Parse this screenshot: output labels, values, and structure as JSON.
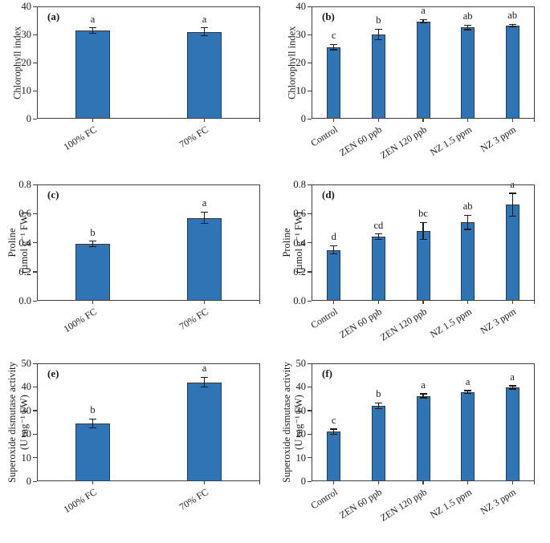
{
  "colors": {
    "bar_fill": "#2f74b5",
    "bar_edge": "#1f3c61",
    "axis": "#3f3f3f",
    "error_bar": "#1a1a1a",
    "text": "#1a1a1a",
    "background": "#ffffff"
  },
  "chart_data": [
    {
      "type": "bar",
      "panel_label": "(a)",
      "ylabel_lines": [
        "Chlorophyll index"
      ],
      "ylim": [
        0,
        40
      ],
      "ytick_labels": [
        "0",
        "10",
        "20",
        "30",
        "40"
      ],
      "categories": [
        "100% FC",
        "70% FC"
      ],
      "values": [
        31.4,
        31.0
      ],
      "errors": [
        1.0,
        1.4
      ],
      "sig_letters": [
        "a",
        "a"
      ],
      "grid": false,
      "legend": "none"
    },
    {
      "type": "bar",
      "panel_label": "(b)",
      "ylabel_lines": [
        "Chlorophyll index"
      ],
      "ylim": [
        0,
        40
      ],
      "ytick_labels": [
        "0",
        "10",
        "20",
        "30",
        "40"
      ],
      "categories": [
        "Control",
        "ZEN 60 ppb",
        "ZEN 120 ppb",
        "NZ 1.5 ppm",
        "NZ 3 ppm"
      ],
      "values": [
        25.5,
        30.0,
        34.7,
        32.5,
        33.2
      ],
      "errors": [
        1.0,
        2.0,
        0.7,
        0.8,
        0.5
      ],
      "sig_letters": [
        "c",
        "b",
        "a",
        "ab",
        "ab"
      ],
      "grid": false,
      "legend": "none"
    },
    {
      "type": "bar",
      "panel_label": "(c)",
      "ylabel_lines": [
        "Proline",
        "(µmol g⁻¹ FW)"
      ],
      "ylim": [
        0,
        0.8
      ],
      "ytick_labels": [
        "0.0",
        "0.2",
        "0.4",
        "0.6",
        "0.8"
      ],
      "categories": [
        "100% FC",
        "70% FC"
      ],
      "values": [
        0.39,
        0.57
      ],
      "errors": [
        0.02,
        0.04
      ],
      "sig_letters": [
        "b",
        "a"
      ],
      "grid": false,
      "legend": "none"
    },
    {
      "type": "bar",
      "panel_label": "(d)",
      "ylabel_lines": [
        "Proline",
        "(µmol g⁻¹ FW)"
      ],
      "ylim": [
        0,
        0.8
      ],
      "ytick_labels": [
        "0.0",
        "0.2",
        "0.4",
        "0.6",
        "0.8"
      ],
      "categories": [
        "Control",
        "ZEN 60 ppb",
        "ZEN 120 ppb",
        "NZ 1.5 ppm",
        "NZ 3 ppm"
      ],
      "values": [
        0.35,
        0.44,
        0.48,
        0.54,
        0.66
      ],
      "errors": [
        0.03,
        0.02,
        0.06,
        0.05,
        0.08
      ],
      "sig_letters": [
        "d",
        "cd",
        "bc",
        "ab",
        "a"
      ],
      "grid": false,
      "legend": "none"
    },
    {
      "type": "bar",
      "panel_label": "(e)",
      "ylabel_lines": [
        "Superoxide dismutase activity",
        "(U mg⁻¹ FW)"
      ],
      "ylim": [
        0,
        50
      ],
      "ytick_labels": [
        "0",
        "10",
        "20",
        "30",
        "40",
        "50"
      ],
      "categories": [
        "100% FC",
        "70% FC"
      ],
      "values": [
        24.5,
        42.0
      ],
      "errors": [
        2.0,
        2.2
      ],
      "sig_letters": [
        "b",
        "a"
      ],
      "grid": false,
      "legend": "none"
    },
    {
      "type": "bar",
      "panel_label": "(f)",
      "ylabel_lines": [
        "Superoxide dismutase activity",
        "(U mg⁻¹ FW)"
      ],
      "ylim": [
        0,
        50
      ],
      "ytick_labels": [
        "0",
        "10",
        "20",
        "30",
        "40",
        "50"
      ],
      "categories": [
        "Control",
        "ZEN 60 ppb",
        "ZEN 120 ppb",
        "NZ 1.5 ppm",
        "NZ 3 ppm"
      ],
      "values": [
        21.0,
        32.0,
        36.2,
        37.8,
        39.8
      ],
      "errors": [
        1.2,
        1.2,
        0.9,
        0.7,
        0.7
      ],
      "sig_letters": [
        "c",
        "b",
        "a",
        "a",
        "a"
      ],
      "grid": false,
      "legend": "none"
    }
  ]
}
